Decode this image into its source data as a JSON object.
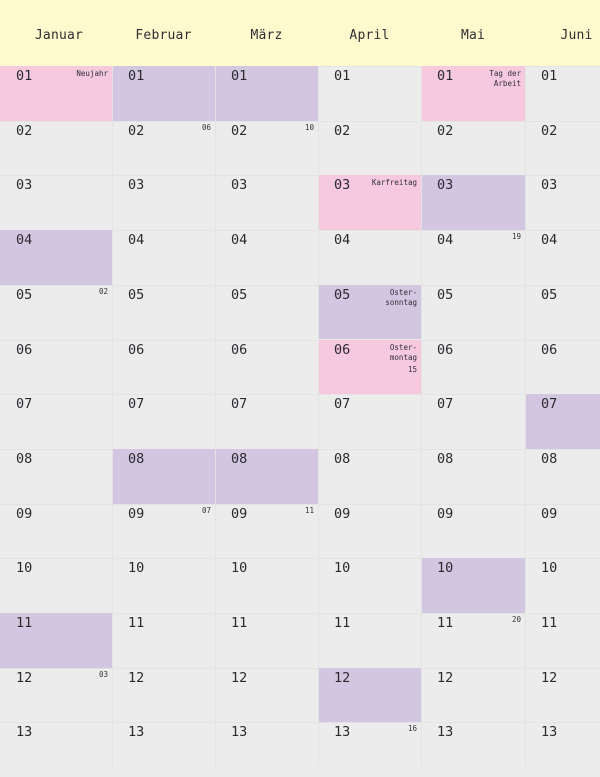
{
  "colors": {
    "header_bg": "#fefacd",
    "page_bg": "#ebeceb",
    "holiday_pink": "#f6c9de",
    "weekend_purple": "#d2c6e1"
  },
  "months": [
    {
      "name": "Januar",
      "days": [
        {
          "day": "01",
          "style": "pink",
          "holiday": "Neujahr"
        },
        {
          "day": "02"
        },
        {
          "day": "03"
        },
        {
          "day": "04",
          "style": "purple"
        },
        {
          "day": "05",
          "week": "02"
        },
        {
          "day": "06"
        },
        {
          "day": "07"
        },
        {
          "day": "08"
        },
        {
          "day": "09"
        },
        {
          "day": "10"
        },
        {
          "day": "11",
          "style": "purple"
        },
        {
          "day": "12",
          "week": "03"
        },
        {
          "day": "13"
        }
      ]
    },
    {
      "name": "Februar",
      "days": [
        {
          "day": "01",
          "style": "purple"
        },
        {
          "day": "02",
          "week": "06"
        },
        {
          "day": "03"
        },
        {
          "day": "04"
        },
        {
          "day": "05"
        },
        {
          "day": "06"
        },
        {
          "day": "07"
        },
        {
          "day": "08",
          "style": "purple"
        },
        {
          "day": "09",
          "week": "07"
        },
        {
          "day": "10"
        },
        {
          "day": "11"
        },
        {
          "day": "12"
        },
        {
          "day": "13"
        }
      ]
    },
    {
      "name": "März",
      "days": [
        {
          "day": "01",
          "style": "purple"
        },
        {
          "day": "02",
          "week": "10"
        },
        {
          "day": "03"
        },
        {
          "day": "04"
        },
        {
          "day": "05"
        },
        {
          "day": "06"
        },
        {
          "day": "07"
        },
        {
          "day": "08",
          "style": "purple"
        },
        {
          "day": "09",
          "week": "11"
        },
        {
          "day": "10"
        },
        {
          "day": "11"
        },
        {
          "day": "12"
        },
        {
          "day": "13"
        }
      ]
    },
    {
      "name": "April",
      "days": [
        {
          "day": "01"
        },
        {
          "day": "02"
        },
        {
          "day": "03",
          "style": "pink",
          "holiday": "Karfreitag"
        },
        {
          "day": "04"
        },
        {
          "day": "05",
          "style": "purple",
          "holiday": "Oster-\nsonntag"
        },
        {
          "day": "06",
          "style": "pink",
          "holiday": "Oster-\nmontag",
          "week": "15",
          "week_below": true
        },
        {
          "day": "07"
        },
        {
          "day": "08"
        },
        {
          "day": "09"
        },
        {
          "day": "10"
        },
        {
          "day": "11"
        },
        {
          "day": "12",
          "style": "purple"
        },
        {
          "day": "13",
          "week": "16"
        }
      ]
    },
    {
      "name": "Mai",
      "days": [
        {
          "day": "01",
          "style": "pink",
          "holiday": "Tag der\nArbeit"
        },
        {
          "day": "02"
        },
        {
          "day": "03",
          "style": "purple"
        },
        {
          "day": "04",
          "week": "19"
        },
        {
          "day": "05"
        },
        {
          "day": "06"
        },
        {
          "day": "07"
        },
        {
          "day": "08"
        },
        {
          "day": "09"
        },
        {
          "day": "10",
          "style": "purple"
        },
        {
          "day": "11",
          "week": "20"
        },
        {
          "day": "12"
        },
        {
          "day": "13"
        }
      ]
    },
    {
      "name": "Juni",
      "days": [
        {
          "day": "01"
        },
        {
          "day": "02"
        },
        {
          "day": "03"
        },
        {
          "day": "04"
        },
        {
          "day": "05"
        },
        {
          "day": "06"
        },
        {
          "day": "07",
          "style": "purple"
        },
        {
          "day": "08"
        },
        {
          "day": "09"
        },
        {
          "day": "10"
        },
        {
          "day": "11"
        },
        {
          "day": "12"
        },
        {
          "day": "13"
        }
      ]
    }
  ]
}
